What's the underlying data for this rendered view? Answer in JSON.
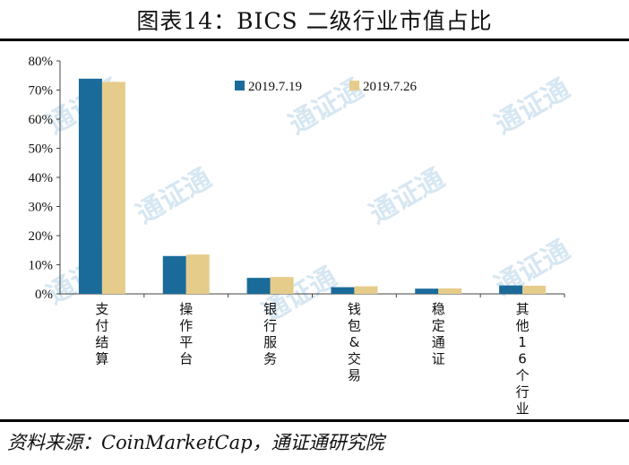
{
  "header": {
    "title": "图表14：BICS 二级行业市值占比"
  },
  "footer": {
    "source": "资料来源：CoinMarketCap，通证通研究院"
  },
  "watermark": "通证通",
  "colors": {
    "series1": "#1a6b9a",
    "series2": "#e6cc8a"
  },
  "chart_data": {
    "type": "bar",
    "categories": [
      "支付结算",
      "操作平台",
      "银行服务",
      "钱包&交易",
      "稳定通证",
      "其他16个行业"
    ],
    "series": [
      {
        "name": "2019.7.19",
        "values": [
          73.9,
          13.0,
          5.5,
          2.3,
          1.8,
          2.9
        ]
      },
      {
        "name": "2019.7.26",
        "values": [
          72.8,
          13.5,
          5.8,
          2.6,
          1.9,
          2.8
        ]
      }
    ],
    "yticks": [
      "0%",
      "10%",
      "20%",
      "30%",
      "40%",
      "50%",
      "60%",
      "70%",
      "80%"
    ],
    "ylim": [
      0,
      80
    ],
    "legend_position": "top-right",
    "grid": false
  }
}
